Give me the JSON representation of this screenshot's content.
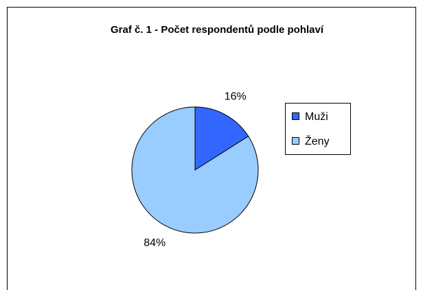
{
  "chart_data": {
    "type": "pie",
    "title": "Graf č. 1 - Počet respondentů podle pohlaví",
    "categories": [
      "Muži",
      "Ženy"
    ],
    "values": [
      16,
      84
    ],
    "value_labels": [
      "16%",
      "84%"
    ],
    "colors": [
      "#3366ff",
      "#99ccff"
    ],
    "legend": "right"
  }
}
